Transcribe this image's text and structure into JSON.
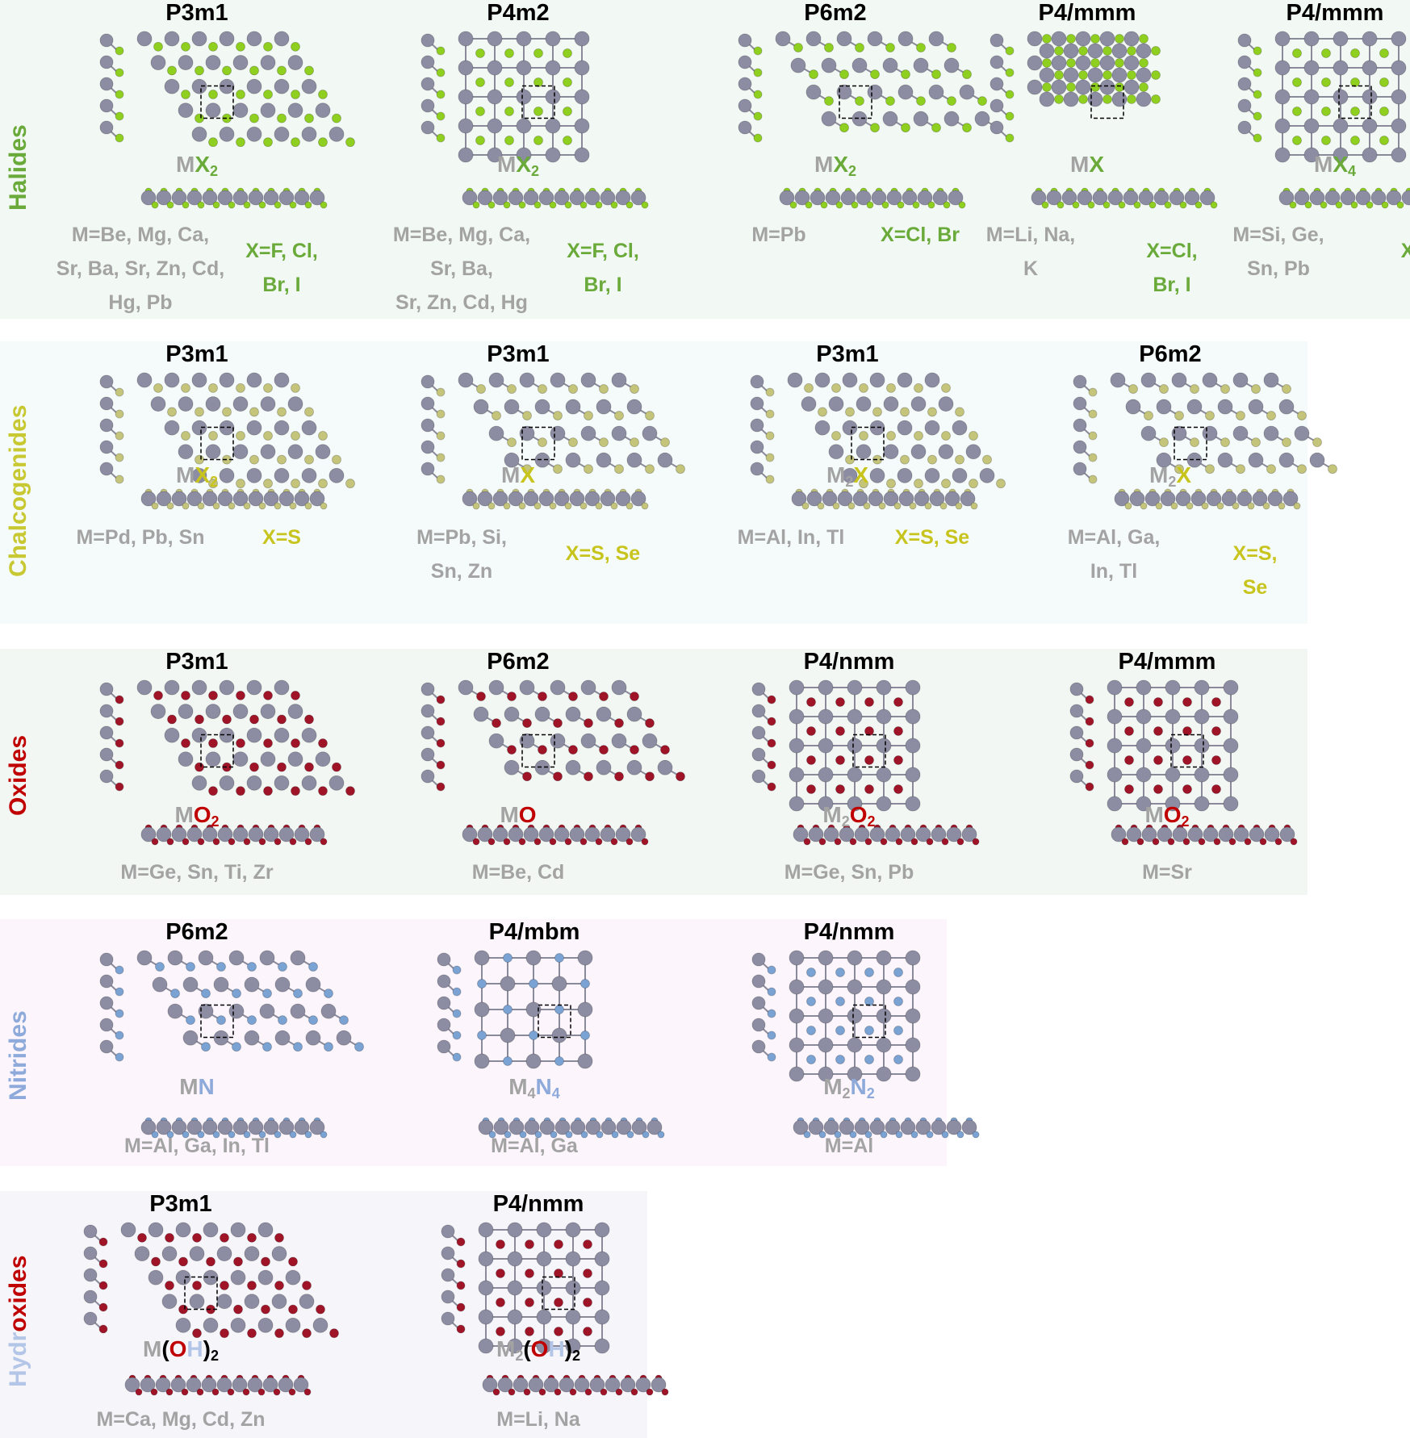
{
  "colors": {
    "M": "#8c8ca3",
    "M_dark": "#5e5e74",
    "label_gray": "#a3a3a3",
    "H": "#f4f0f4"
  },
  "groups": [
    {
      "label": [
        {
          "text": "Halides",
          "color": "#6aaa3a"
        }
      ],
      "background": "#f2f8f3",
      "x_color": "#6aaa3a",
      "atom_color": "#8fcf1f",
      "columns": [
        {
          "space_group": "P3m1",
          "lattice": "hex",
          "formula": [
            {
              "text": "M",
              "role": "M"
            },
            {
              "text": "X",
              "role": "X",
              "sub": "2"
            }
          ],
          "m_label": "M=Be, Mg, Ca,\nSr, Ba, Sr, Zn, Cd,\nHg, Pb",
          "x_label": "X=F, Cl,\nBr, I"
        },
        {
          "space_group": "P4m2",
          "lattice": "square",
          "formula": [
            {
              "text": "M",
              "role": "M"
            },
            {
              "text": "X",
              "role": "X",
              "sub": "2"
            }
          ],
          "m_label": "M=Be, Mg, Ca,\nSr, Ba,\nSr, Zn, Cd, Hg",
          "x_label": "X=F, Cl,\nBr, I"
        },
        {
          "space_group": "P6m2",
          "lattice": "honey",
          "formula": [
            {
              "text": "M",
              "role": "M"
            },
            {
              "text": "X",
              "role": "X",
              "sub": "2"
            }
          ],
          "m_label": "M=Pb",
          "x_label": "X=Cl, Br"
        },
        {
          "space_group": "P4/mmm",
          "lattice": "diamond",
          "formula": [
            {
              "text": "M",
              "role": "M"
            },
            {
              "text": "X",
              "role": "X"
            }
          ],
          "m_label": "M=Li, Na,\nK",
          "x_label": "X=Cl,\nBr, I"
        },
        {
          "space_group": "P4/mmm",
          "lattice": "square",
          "formula": [
            {
              "text": "M",
              "role": "M"
            },
            {
              "text": "X",
              "role": "X",
              "sub": "4"
            }
          ],
          "m_label": "M=Si, Ge,\nSn, Pb",
          "x_label": "X=F"
        }
      ]
    },
    {
      "label": [
        {
          "text": "Chalcogenides",
          "color": "#c8c832"
        }
      ],
      "background": "#f5fbfa",
      "x_color": "#c8c41e",
      "atom_color": "#c4c47a",
      "columns": [
        {
          "space_group": "P3m1",
          "lattice": "hex",
          "formula": [
            {
              "text": "M",
              "role": "M"
            },
            {
              "text": "X",
              "role": "X",
              "sub": "2"
            }
          ],
          "m_label": "M=Pd, Pb, Sn",
          "x_label": "X=S"
        },
        {
          "space_group": "P3m1",
          "lattice": "honey",
          "formula": [
            {
              "text": "M",
              "role": "M"
            },
            {
              "text": "X",
              "role": "X"
            }
          ],
          "m_label": "M=Pb, Si,\nSn, Zn",
          "x_label": "X=S, Se"
        },
        {
          "space_group": "P3m1",
          "lattice": "hex",
          "formula": [
            {
              "text": "M",
              "role": "M",
              "sub": "2"
            },
            {
              "text": "X",
              "role": "X"
            }
          ],
          "m_label": "M=Al, In, Tl",
          "x_label": "X=S, Se"
        },
        {
          "space_group": "P6m2",
          "lattice": "honey",
          "formula": [
            {
              "text": "M",
              "role": "M",
              "sub": "2"
            },
            {
              "text": "X",
              "role": "X"
            }
          ],
          "m_label": "M=Al, Ga,\nIn, Tl",
          "x_label": "X=S, Se"
        }
      ]
    },
    {
      "label": [
        {
          "text": "Oxides",
          "color": "#c00000"
        }
      ],
      "background": "#f2f7f3",
      "x_color": "#c00000",
      "atom_color": "#a01428",
      "columns": [
        {
          "space_group": "P3m1",
          "lattice": "hex",
          "formula": [
            {
              "text": "M",
              "role": "M"
            },
            {
              "text": "O",
              "role": "X",
              "sub": "2"
            }
          ],
          "m_label": "M=Ge, Sn, Ti, Zr",
          "x_label": ""
        },
        {
          "space_group": "P6m2",
          "lattice": "honey",
          "formula": [
            {
              "text": "M",
              "role": "M"
            },
            {
              "text": "O",
              "role": "X"
            }
          ],
          "m_label": "M=Be, Cd",
          "x_label": ""
        },
        {
          "space_group": "P4/nmm",
          "lattice": "square",
          "formula": [
            {
              "text": "M",
              "role": "M",
              "sub": "2"
            },
            {
              "text": "O",
              "role": "X",
              "sub": "2"
            }
          ],
          "m_label": "M=Ge, Sn, Pb",
          "x_label": ""
        },
        {
          "space_group": "P4/mmm",
          "lattice": "square",
          "formula": [
            {
              "text": "M",
              "role": "M"
            },
            {
              "text": "O",
              "role": "X",
              "sub": "2"
            }
          ],
          "m_label": "M=Sr",
          "x_label": ""
        }
      ]
    },
    {
      "label": [
        {
          "text": "Nitrides",
          "color": "#8eaadb"
        }
      ],
      "background": "#fcf5fc",
      "x_color": "#8eaadb",
      "atom_color": "#7aa2d2",
      "columns": [
        {
          "space_group": "P6m2",
          "lattice": "honey",
          "formula": [
            {
              "text": "M",
              "role": "M"
            },
            {
              "text": "N",
              "role": "X"
            }
          ],
          "m_label": "M=Al, Ga, In, Tl",
          "x_label": ""
        },
        {
          "space_group": "P4/mbm",
          "lattice": "octagon",
          "formula": [
            {
              "text": "M",
              "role": "M",
              "sub": "4"
            },
            {
              "text": "N",
              "role": "X",
              "sub": "4"
            }
          ],
          "m_label": "M=Al, Ga",
          "x_label": ""
        },
        {
          "space_group": "P4/nmm",
          "lattice": "square",
          "formula": [
            {
              "text": "M",
              "role": "M",
              "sub": "2"
            },
            {
              "text": "N",
              "role": "X",
              "sub": "2"
            }
          ],
          "m_label": "M=Al",
          "x_label": ""
        }
      ]
    },
    {
      "label": [
        {
          "text": "Hydr",
          "color": "#b4c6e7"
        },
        {
          "text": "oxides",
          "color": "#c00000"
        }
      ],
      "background": "#f6f5fa",
      "x_color": "#c00000",
      "atom_color": "#a01428",
      "columns": [
        {
          "space_group": "P3m1",
          "lattice": "hex",
          "formula": [
            {
              "text": "M",
              "role": "M"
            },
            {
              "text": "(",
              "role": "P"
            },
            {
              "text": "O",
              "role": "X"
            },
            {
              "text": "H",
              "role": "H"
            },
            {
              "text": ")",
              "role": "P",
              "sub": "2"
            }
          ],
          "m_label": "M=Ca, Mg, Cd, Zn",
          "x_label": ""
        },
        {
          "space_group": "P4/nmm",
          "lattice": "square",
          "formula": [
            {
              "text": "M",
              "role": "M",
              "sub": "2"
            },
            {
              "text": "(",
              "role": "P"
            },
            {
              "text": "O",
              "role": "X"
            },
            {
              "text": "H",
              "role": "H"
            },
            {
              "text": ")",
              "role": "P",
              "sub": "2"
            }
          ],
          "m_label": "M=Li, Na",
          "x_label": ""
        }
      ]
    }
  ]
}
